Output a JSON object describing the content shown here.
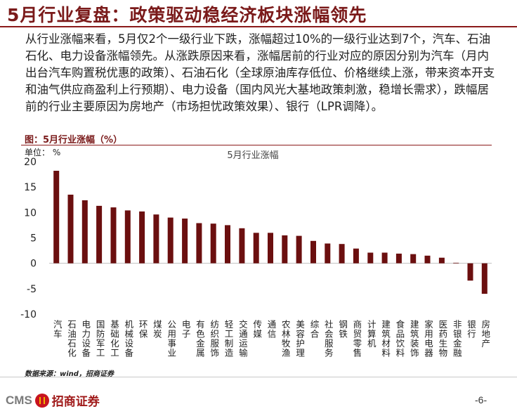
{
  "header": {
    "title": "5月行业复盘：政策驱动稳经济板块涨幅领先"
  },
  "body": {
    "paragraph": "从行业涨幅来看，5月仅2个一级行业下跌，涨幅超过10%的一级行业达到7个，汽车、石油石化、电力设备涨幅领先。从涨跌原因来看，涨幅居前的行业对应的原因分别为汽车（月内出台汽车购置税优惠的政策）、石油石化（全球原油库存低位、价格继续上涨，带来资本开支和油气供应商盈利上行预期）、电力设备（国内风光大基地政策刺激，稳增长需求），跌幅居前的行业主要原因为房地产（市场担忧政策效果）、银行（LPR调降）。"
  },
  "figure": {
    "caption": "图：5月行业涨幅（%）",
    "unit_label": "单位：  %",
    "source": "数据来源：wind，招商证券"
  },
  "chart_data": {
    "type": "bar",
    "title": "5月行业涨幅",
    "ylim": [
      -10,
      20
    ],
    "yticks": [
      -10,
      -5,
      0,
      5,
      10,
      15,
      20
    ],
    "grid": false,
    "bar_color": "#6b0f0f",
    "categories": [
      "汽车",
      "石油石化",
      "电力设备",
      "国防军工",
      "基础化工",
      "机械设备",
      "环保",
      "煤炭",
      "公用事业",
      "电子",
      "有色金属",
      "纺织服饰",
      "轻工制造",
      "交通运输",
      "传媒",
      "通信",
      "农林牧渔",
      "美容护理",
      "综合",
      "社会服务",
      "钢铁",
      "商贸零售",
      "计算机",
      "建筑材料",
      "食品饮料",
      "建筑装饰",
      "家用电器",
      "医药生物",
      "非银金融",
      "银行",
      "房地产"
    ],
    "values": [
      18.2,
      13.5,
      12.4,
      11.3,
      11.0,
      10.4,
      10.2,
      9.6,
      9.0,
      8.8,
      7.9,
      7.8,
      7.5,
      6.9,
      6.0,
      6.0,
      5.5,
      5.4,
      4.4,
      3.9,
      3.8,
      2.9,
      2.1,
      2.1,
      1.9,
      1.8,
      1.5,
      1.1,
      0.1,
      -3.4,
      -6.0
    ]
  },
  "footer": {
    "logo_text": "CMS",
    "logo_cn": "招商证券",
    "page": "-6-"
  },
  "colors": {
    "brand": "#7a1a1a",
    "bar": "#6b0f0f",
    "logo_red": "#c8141e"
  }
}
